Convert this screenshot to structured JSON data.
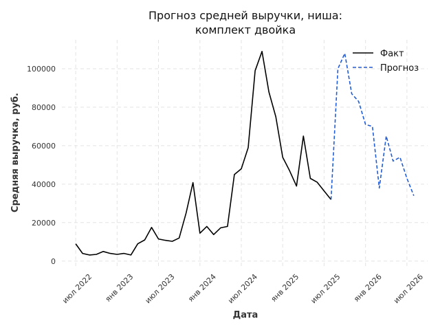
{
  "chart_data": {
    "type": "line",
    "title_lines": [
      "Прогноз средней выручки, ниша:",
      "комплект двойка"
    ],
    "xlabel": "Дата",
    "ylabel": "Средняя выручка, руб.",
    "x_tick_labels": [
      "июл 2022",
      "янв 2023",
      "июл 2023",
      "янв 2024",
      "июл 2024",
      "янв 2025",
      "июл 2025",
      "янв 2026",
      "июл 2026"
    ],
    "x_tick_dates": [
      "2022-07",
      "2023-01",
      "2023-07",
      "2024-01",
      "2024-07",
      "2025-01",
      "2025-07",
      "2026-01",
      "2026-07"
    ],
    "y_ticks": [
      0,
      20000,
      40000,
      60000,
      80000,
      100000
    ],
    "xlim": [
      "2022-05",
      "2026-10"
    ],
    "ylim": [
      -4000,
      115000
    ],
    "grid": true,
    "legend_position": "top-right",
    "series": [
      {
        "name": "Факт",
        "style": "solid",
        "color": "#000000",
        "x": [
          "2022-07",
          "2022-08",
          "2022-09",
          "2022-10",
          "2022-11",
          "2022-12",
          "2023-01",
          "2023-02",
          "2023-03",
          "2023-04",
          "2023-05",
          "2023-06",
          "2023-07",
          "2023-08",
          "2023-09",
          "2023-10",
          "2023-11",
          "2023-12",
          "2024-01",
          "2024-02",
          "2024-03",
          "2024-04",
          "2024-05",
          "2024-06",
          "2024-07",
          "2024-08",
          "2024-09",
          "2024-10",
          "2024-11",
          "2024-12",
          "2025-01",
          "2025-02",
          "2025-03",
          "2025-04",
          "2025-05",
          "2025-06",
          "2025-07",
          "2025-08"
        ],
        "y": [
          9000,
          4000,
          3200,
          3500,
          5000,
          4000,
          3500,
          4000,
          3200,
          9000,
          11000,
          17500,
          11500,
          10800,
          10300,
          12000,
          25000,
          40800,
          14500,
          18000,
          13800,
          17300,
          18000,
          45000,
          48000,
          59000,
          99000,
          109000,
          88000,
          75000,
          54000,
          47000,
          39000,
          65000,
          43000,
          41000,
          36500,
          32000
        ]
      },
      {
        "name": "Прогноз",
        "style": "dashed",
        "color": "#1f5bd6",
        "x": [
          "2025-08",
          "2025-09",
          "2025-10",
          "2025-11",
          "2025-12",
          "2026-01",
          "2026-02",
          "2026-03",
          "2026-04",
          "2026-05",
          "2026-06",
          "2026-07",
          "2026-08"
        ],
        "y": [
          32000,
          100000,
          108000,
          87000,
          83000,
          71000,
          70000,
          38000,
          65000,
          52000,
          54000,
          43000,
          34000
        ]
      }
    ]
  }
}
